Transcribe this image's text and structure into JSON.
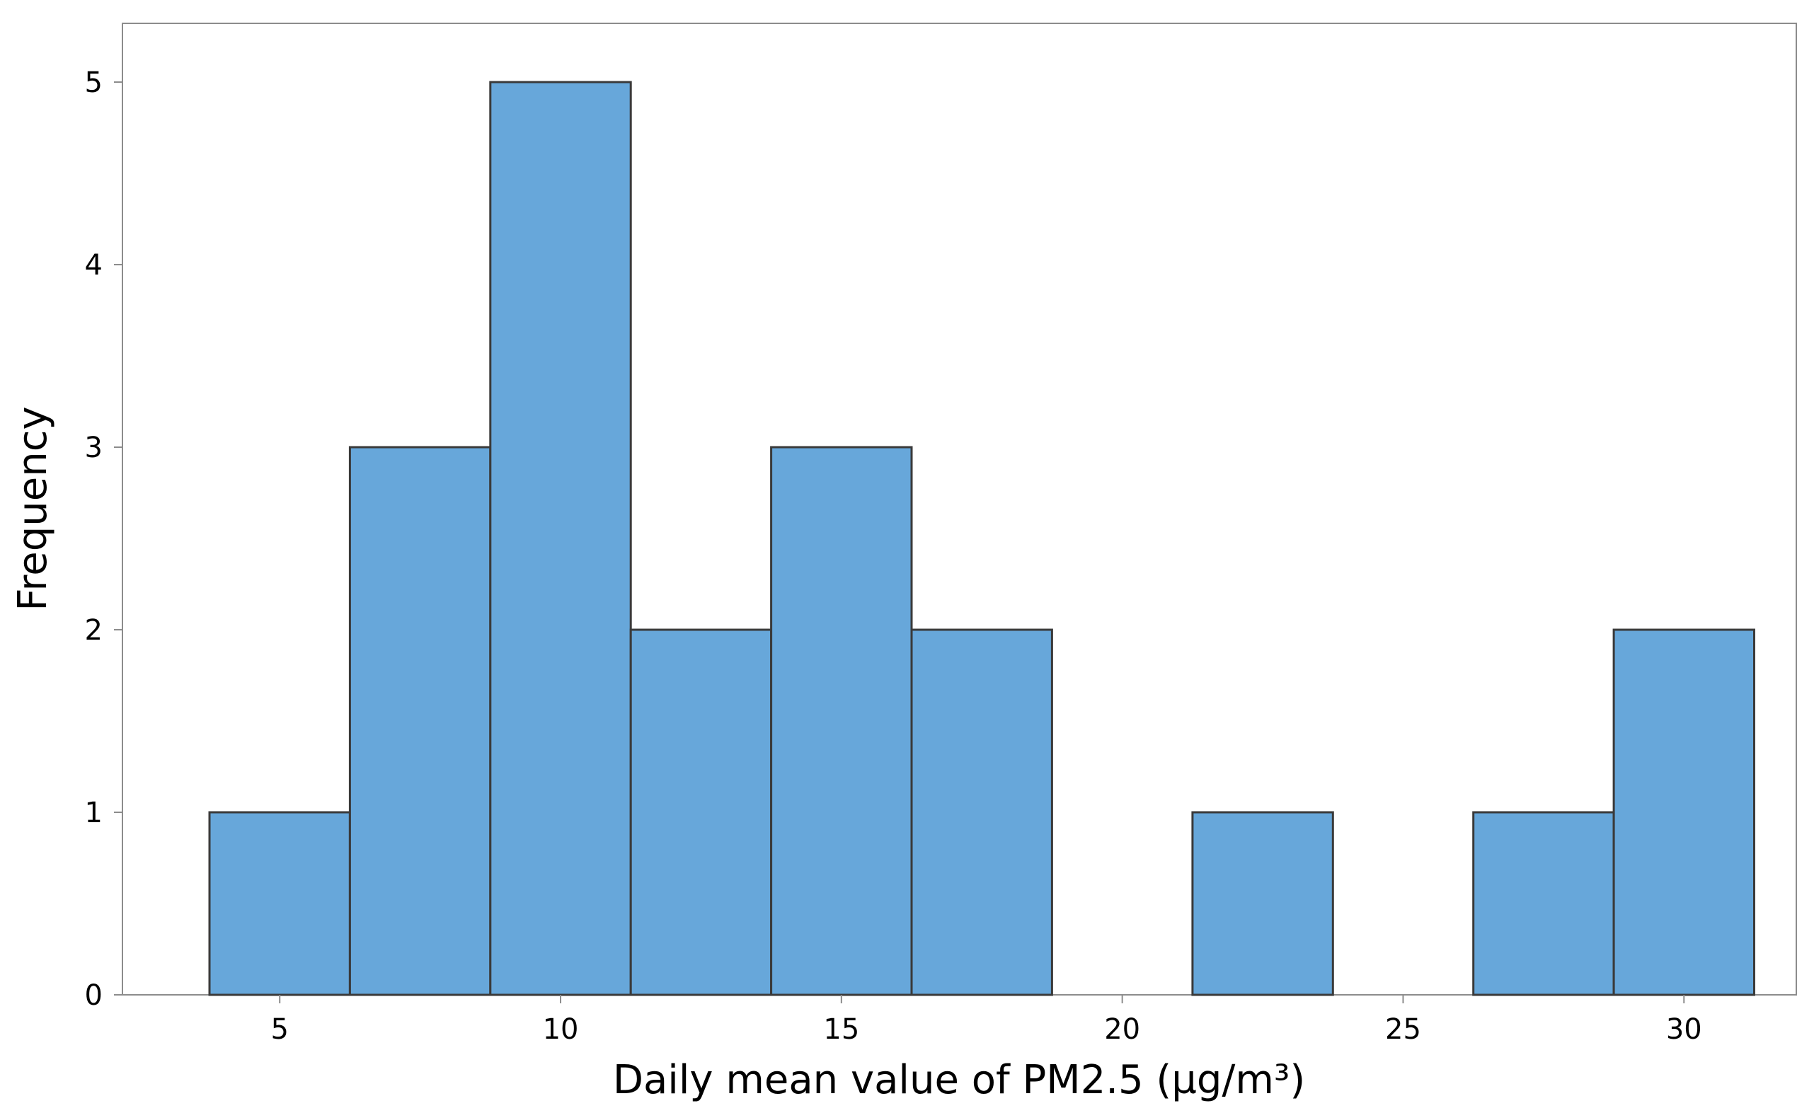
{
  "chart_data": {
    "type": "bar",
    "subtype": "histogram",
    "bin_width": 2.5,
    "bins": [
      {
        "start": 3.75,
        "end": 6.25,
        "center": 5.0,
        "frequency": 1
      },
      {
        "start": 6.25,
        "end": 8.75,
        "center": 7.5,
        "frequency": 3
      },
      {
        "start": 8.75,
        "end": 11.25,
        "center": 10.0,
        "frequency": 5
      },
      {
        "start": 11.25,
        "end": 13.75,
        "center": 12.5,
        "frequency": 2
      },
      {
        "start": 13.75,
        "end": 16.25,
        "center": 15.0,
        "frequency": 3
      },
      {
        "start": 16.25,
        "end": 18.75,
        "center": 17.5,
        "frequency": 2
      },
      {
        "start": 18.75,
        "end": 21.25,
        "center": 20.0,
        "frequency": 0
      },
      {
        "start": 21.25,
        "end": 23.75,
        "center": 22.5,
        "frequency": 1
      },
      {
        "start": 23.75,
        "end": 26.25,
        "center": 25.0,
        "frequency": 0
      },
      {
        "start": 26.25,
        "end": 28.75,
        "center": 27.5,
        "frequency": 1
      },
      {
        "start": 28.75,
        "end": 31.25,
        "center": 30.0,
        "frequency": 2
      }
    ],
    "xlabel": "Daily mean value of PM2.5 (µg/m³)",
    "ylabel": "Frequency",
    "xlim": [
      2.2,
      32.0
    ],
    "ylim": [
      0,
      5.4
    ],
    "xticks": [
      5,
      10,
      15,
      20,
      25,
      30
    ],
    "yticks": [
      0,
      1,
      2,
      3,
      4,
      5
    ],
    "grid": false,
    "legend": "none",
    "bar_color": "#67A7DA",
    "bar_edge_color": "#3A3A3A",
    "axis_color": "#8C8C8C"
  }
}
